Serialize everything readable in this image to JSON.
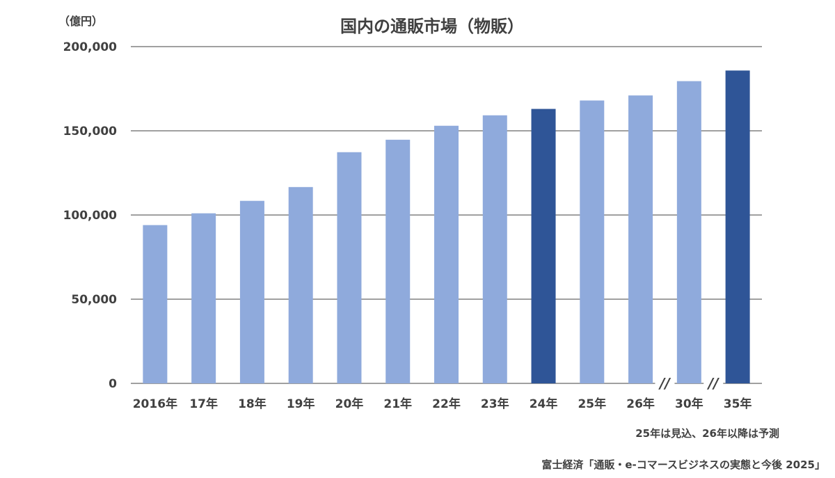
{
  "chart_data": {
    "type": "bar",
    "title": "国内の通販市場（物販）",
    "unit_label": "（億円）",
    "categories": [
      "2016年",
      "17年",
      "18年",
      "19年",
      "20年",
      "21年",
      "22年",
      "23年",
      "24年",
      "25年",
      "26年",
      "30年",
      "35年"
    ],
    "values": [
      94000,
      101000,
      108400,
      116600,
      137300,
      144700,
      153000,
      159200,
      163000,
      168000,
      171000,
      179500,
      185800
    ],
    "y_ticks": [
      "200,000",
      "150,000",
      "100,000",
      "50,000",
      "0"
    ],
    "y_tick_values": [
      200000,
      150000,
      100000,
      50000,
      0
    ],
    "ylim": [
      0,
      200000
    ],
    "grid": true,
    "axis_break_markers": [
      "//",
      "//"
    ],
    "highlighted_categories": [
      "24年",
      "35年"
    ],
    "colors": {
      "default": "#8faadc",
      "highlight": "#2f5597",
      "grid": "#404040"
    },
    "note": "25年は見込、26年以降は予測",
    "source": "富士経済「通販・e-コマースビジネスの実態と今後 2025」"
  }
}
